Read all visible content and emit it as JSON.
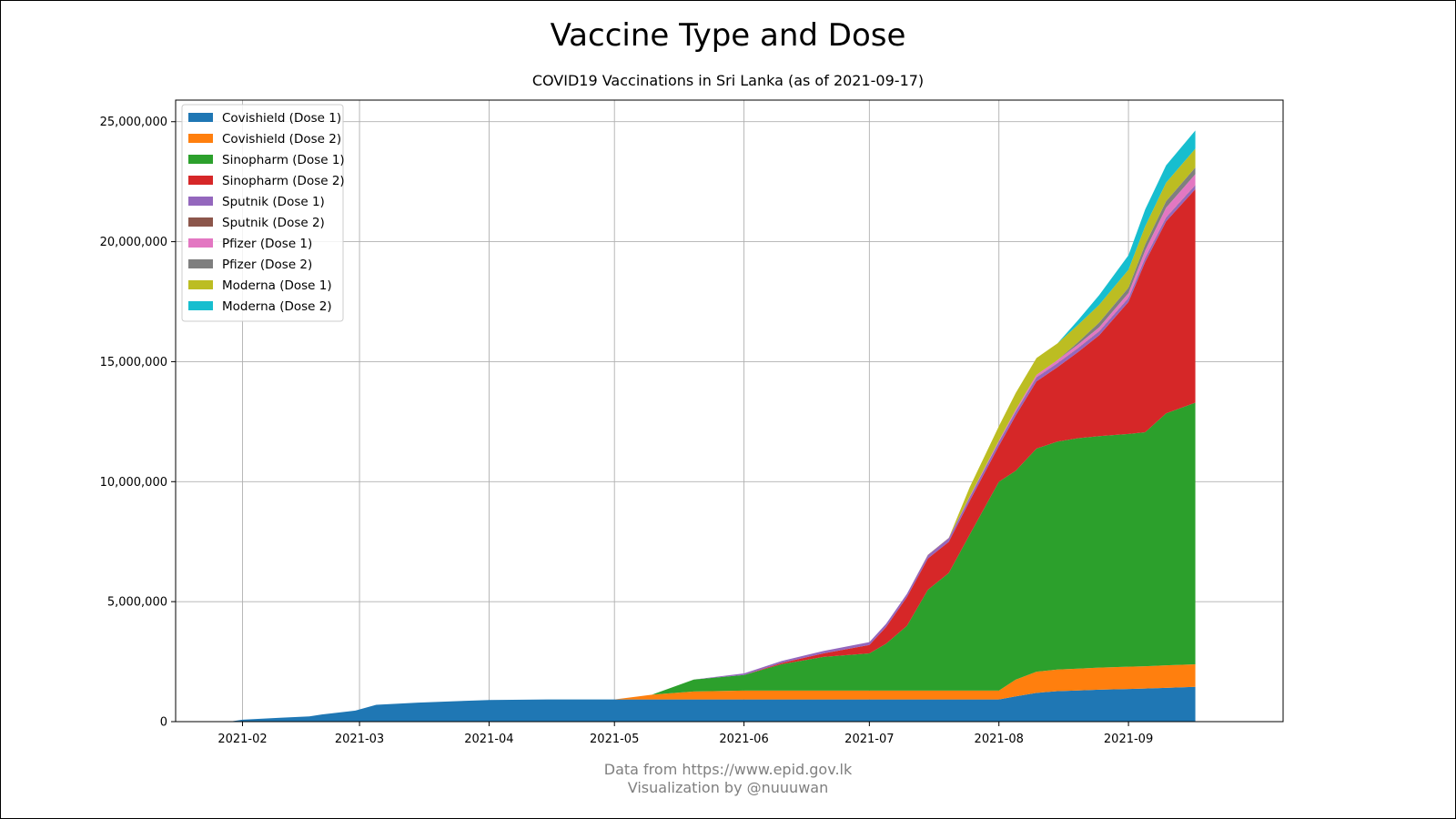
{
  "title": "Vaccine Type and Dose",
  "subtitle": "COVID19 Vaccinations in Sri Lanka (as of 2021-09-17)",
  "footer": {
    "source": "Data from https://www.epid.gov.lk",
    "credit": "Visualization by @nuuuwan"
  },
  "chart_data": {
    "type": "area",
    "stacked": true,
    "grid": true,
    "legend_position": "top-left",
    "x": [
      "2021-01-29",
      "2021-02-01",
      "2021-02-10",
      "2021-02-17",
      "2021-02-20",
      "2021-02-28",
      "2021-03-05",
      "2021-03-15",
      "2021-03-25",
      "2021-04-01",
      "2021-04-15",
      "2021-05-01",
      "2021-05-10",
      "2021-05-20",
      "2021-06-01",
      "2021-06-10",
      "2021-06-20",
      "2021-07-01",
      "2021-07-05",
      "2021-07-10",
      "2021-07-15",
      "2021-07-20",
      "2021-07-25",
      "2021-08-01",
      "2021-08-05",
      "2021-08-10",
      "2021-08-15",
      "2021-08-20",
      "2021-08-25",
      "2021-09-01",
      "2021-09-05",
      "2021-09-10",
      "2021-09-17"
    ],
    "xticks": [
      "2021-02",
      "2021-03",
      "2021-04",
      "2021-05",
      "2021-06",
      "2021-07",
      "2021-08",
      "2021-09"
    ],
    "yticks": [
      "0",
      "5,000,000",
      "10,000,000",
      "15,000,000",
      "20,000,000",
      "25,000,000"
    ],
    "yticks_values": [
      0,
      5000000,
      10000000,
      15000000,
      20000000,
      25000000
    ],
    "ylim": [
      0,
      25900000
    ],
    "xlim": [
      "2021-01-16",
      "2021-10-08"
    ],
    "series": [
      {
        "name": "Covishield (Dose 1)",
        "color": "#1f77b4",
        "values": [
          0,
          80000,
          160000,
          220000,
          300000,
          460000,
          700000,
          790000,
          860000,
          900000,
          925000,
          925000,
          925000,
          925000,
          925000,
          925000,
          925000,
          925000,
          925000,
          925000,
          925000,
          925000,
          925000,
          925000,
          1050000,
          1200000,
          1270000,
          1300000,
          1330000,
          1360000,
          1380000,
          1410000,
          1450000
        ]
      },
      {
        "name": "Covishield (Dose 2)",
        "color": "#ff7f0e",
        "values": [
          0,
          0,
          0,
          0,
          0,
          0,
          0,
          0,
          0,
          0,
          0,
          0,
          200000,
          330000,
          370000,
          370000,
          370000,
          370000,
          370000,
          370000,
          370000,
          370000,
          370000,
          370000,
          700000,
          880000,
          900000,
          910000,
          920000,
          930000,
          930000,
          935000,
          940000
        ]
      },
      {
        "name": "Sinopharm (Dose 1)",
        "color": "#2ca02c",
        "values": [
          0,
          0,
          0,
          0,
          0,
          0,
          0,
          0,
          0,
          0,
          0,
          0,
          0,
          500000,
          650000,
          1100000,
          1400000,
          1550000,
          1950000,
          2700000,
          4200000,
          4900000,
          6500000,
          8700000,
          8700000,
          9300000,
          9500000,
          9600000,
          9650000,
          9700000,
          9750000,
          10500000,
          10900000
        ]
      },
      {
        "name": "Sinopharm (Dose 2)",
        "color": "#d62728",
        "values": [
          0,
          0,
          0,
          0,
          0,
          0,
          0,
          0,
          0,
          0,
          0,
          0,
          0,
          0,
          0,
          50000,
          150000,
          350000,
          700000,
          1200000,
          1300000,
          1300000,
          1400000,
          1500000,
          2300000,
          2800000,
          3100000,
          3600000,
          4200000,
          5500000,
          7100000,
          8000000,
          8900000
        ]
      },
      {
        "name": "Sputnik (Dose 1)",
        "color": "#9467bd",
        "values": [
          0,
          0,
          0,
          0,
          0,
          0,
          0,
          0,
          0,
          0,
          0,
          0,
          0,
          0,
          65000,
          80000,
          100000,
          120000,
          130000,
          135000,
          140000,
          145000,
          150000,
          155000,
          157000,
          158000,
          159000,
          159000,
          159000,
          159000,
          159000,
          159000,
          160000
        ]
      },
      {
        "name": "Sputnik (Dose 2)",
        "color": "#8c564b",
        "values": [
          0,
          0,
          0,
          0,
          0,
          0,
          0,
          0,
          0,
          0,
          0,
          0,
          0,
          0,
          0,
          0,
          0,
          0,
          0,
          0,
          14000,
          14000,
          14000,
          14000,
          14000,
          14000,
          14000,
          14000,
          14000,
          14000,
          14000,
          14000,
          14000
        ]
      },
      {
        "name": "Pfizer (Dose 1)",
        "color": "#e377c2",
        "values": [
          0,
          0,
          0,
          0,
          0,
          0,
          0,
          0,
          0,
          0,
          0,
          0,
          0,
          0,
          0,
          0,
          0,
          0,
          0,
          0,
          0,
          0,
          25000,
          50000,
          70000,
          100000,
          120000,
          140000,
          160000,
          200000,
          300000,
          400000,
          450000
        ]
      },
      {
        "name": "Pfizer (Dose 2)",
        "color": "#7f7f7f",
        "values": [
          0,
          0,
          0,
          0,
          0,
          0,
          0,
          0,
          0,
          0,
          0,
          0,
          0,
          0,
          0,
          0,
          0,
          0,
          0,
          0,
          0,
          0,
          0,
          0,
          0,
          0,
          0,
          100000,
          200000,
          220000,
          250000,
          270000,
          280000
        ]
      },
      {
        "name": "Moderna (Dose 1)",
        "color": "#bcbd22",
        "values": [
          0,
          0,
          0,
          0,
          0,
          0,
          0,
          0,
          0,
          0,
          0,
          0,
          0,
          0,
          0,
          0,
          0,
          0,
          0,
          0,
          0,
          0,
          380000,
          600000,
          700000,
          700000,
          700000,
          720000,
          740000,
          750000,
          760000,
          770000,
          780000
        ]
      },
      {
        "name": "Moderna (Dose 2)",
        "color": "#17becf",
        "values": [
          0,
          0,
          0,
          0,
          0,
          0,
          0,
          0,
          0,
          0,
          0,
          0,
          0,
          0,
          0,
          0,
          0,
          0,
          0,
          0,
          0,
          0,
          0,
          0,
          0,
          0,
          0,
          200000,
          400000,
          600000,
          700000,
          720000,
          760000
        ]
      }
    ]
  }
}
